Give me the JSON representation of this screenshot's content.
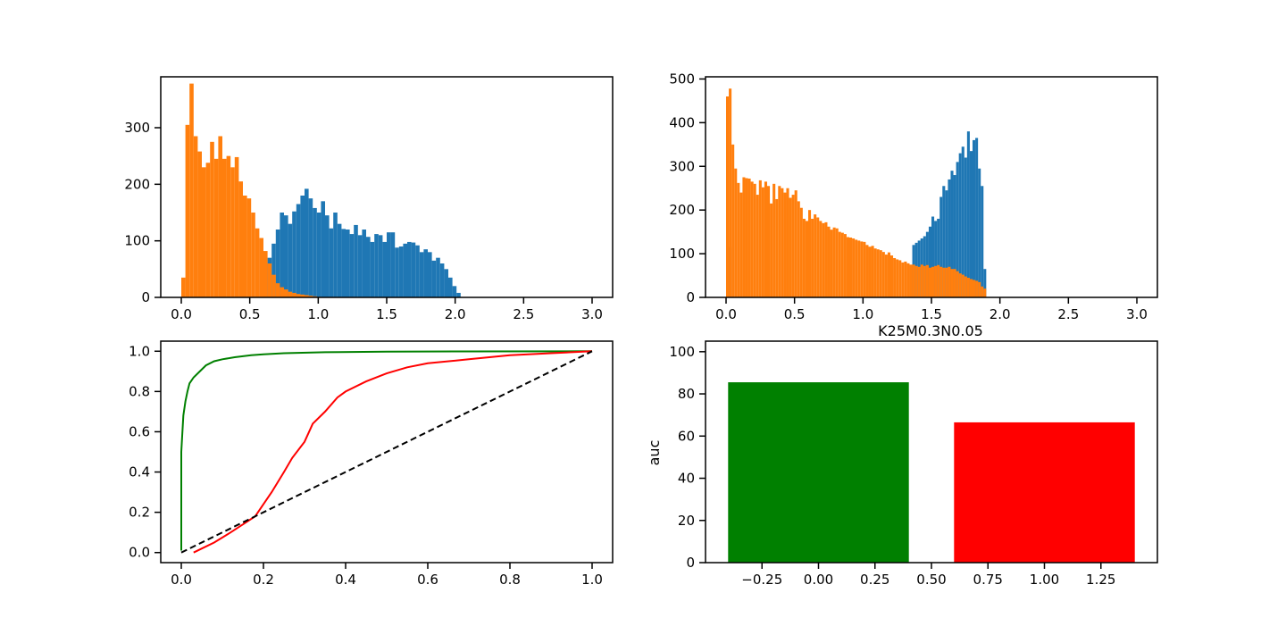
{
  "figure": {
    "background": "#ffffff",
    "colors": {
      "blue": "#1f77b4",
      "orange": "#ff7f0e",
      "green": "#008000",
      "red": "#ff0000",
      "diag": "#000000"
    }
  },
  "chart_data": [
    {
      "id": "hist-left",
      "type": "bar",
      "title": "",
      "xlabel": "",
      "ylabel": "",
      "xlim": [
        -0.15,
        3.15
      ],
      "ylim": [
        0,
        390
      ],
      "xticks": [
        0.0,
        0.5,
        1.0,
        1.5,
        2.0,
        2.5,
        3.0
      ],
      "xticklabels": [
        "0.0",
        "0.5",
        "1.0",
        "1.5",
        "2.0",
        "2.5",
        "3.0"
      ],
      "yticks": [
        0,
        100,
        200,
        300
      ],
      "yticklabels": [
        "0",
        "100",
        "200",
        "300"
      ],
      "bin_edges": {
        "start": 0.0,
        "width": 0.03
      },
      "series": [
        {
          "color": "#1f77b4",
          "values": [
            0,
            0,
            0,
            0,
            0,
            0,
            0,
            0,
            0,
            0,
            0,
            0,
            0,
            0,
            0,
            0,
            0,
            0,
            0,
            0,
            40,
            70,
            95,
            120,
            150,
            145,
            130,
            152,
            165,
            180,
            192,
            175,
            158,
            150,
            170,
            145,
            122,
            150,
            130,
            121,
            120,
            112,
            128,
            110,
            120,
            107,
            98,
            112,
            110,
            98,
            115,
            115,
            88,
            90,
            95,
            98,
            97,
            92,
            80,
            85,
            80,
            65,
            70,
            60,
            50,
            35,
            20,
            8,
            0,
            0,
            0,
            0,
            0,
            0,
            0,
            0,
            0,
            0,
            0,
            0,
            0,
            0,
            0,
            0,
            0,
            0,
            0,
            0,
            0,
            0,
            0,
            0,
            0,
            0,
            0,
            0,
            0,
            0,
            0,
            0
          ]
        },
        {
          "color": "#ff7f0e",
          "values": [
            35,
            305,
            378,
            285,
            258,
            230,
            238,
            275,
            245,
            285,
            245,
            250,
            230,
            248,
            205,
            180,
            175,
            150,
            122,
            105,
            82,
            60,
            40,
            25,
            18,
            14,
            10,
            8,
            6,
            5,
            4,
            3,
            2,
            1,
            0,
            0,
            0,
            0,
            0,
            0,
            0,
            0,
            0,
            0,
            0,
            0,
            0,
            0,
            0,
            0,
            0,
            0,
            0,
            0,
            0,
            0,
            0,
            0,
            0,
            0,
            0,
            0,
            0,
            0,
            0,
            0,
            0,
            0,
            0,
            0,
            0,
            0,
            0,
            0,
            0,
            0,
            0,
            0,
            0,
            0,
            0,
            0,
            0,
            0,
            0,
            0,
            0,
            0,
            0,
            0,
            0,
            0,
            0,
            0,
            0,
            0,
            0,
            0,
            0,
            0
          ]
        }
      ]
    },
    {
      "id": "hist-right",
      "type": "bar",
      "title": "",
      "xlabel": "",
      "ylabel": "",
      "xlim": [
        -0.15,
        3.15
      ],
      "ylim": [
        0,
        505
      ],
      "xticks": [
        0.0,
        0.5,
        1.0,
        1.5,
        2.0,
        2.5,
        3.0
      ],
      "xticklabels": [
        "0.0",
        "0.5",
        "1.0",
        "1.5",
        "2.0",
        "2.5",
        "3.0"
      ],
      "yticks": [
        0,
        100,
        200,
        300,
        400,
        500
      ],
      "yticklabels": [
        "0",
        "100",
        "200",
        "300",
        "400",
        "500"
      ],
      "bin_edges": {
        "start": 0.0,
        "width": 0.02
      },
      "series": [
        {
          "color": "#1f77b4",
          "values": [
            460,
            115,
            0,
            0,
            0,
            0,
            0,
            0,
            0,
            0,
            0,
            0,
            0,
            0,
            0,
            0,
            0,
            0,
            0,
            0,
            0,
            0,
            0,
            0,
            0,
            0,
            0,
            0,
            0,
            0,
            0,
            0,
            0,
            0,
            0,
            0,
            0,
            0,
            0,
            0,
            0,
            0,
            0,
            0,
            0,
            0,
            0,
            0,
            0,
            0,
            0,
            0,
            0,
            0,
            0,
            0,
            0,
            0,
            0,
            0,
            0,
            0,
            0,
            0,
            0,
            0,
            0,
            0,
            0,
            0,
            0,
            0,
            0,
            0,
            0,
            0,
            0,
            0,
            0,
            0,
            0,
            0,
            0,
            0,
            0,
            0,
            0,
            0,
            0,
            0,
            0,
            0,
            0,
            0,
            0,
            0,
            0,
            0,
            0,
            0,
            0,
            0,
            0,
            0,
            0,
            0,
            0,
            0,
            0,
            0,
            0,
            0,
            0,
            0,
            0,
            0,
            0,
            0,
            0,
            0,
            0,
            0,
            0,
            0,
            0,
            0,
            0,
            0,
            0,
            0,
            0,
            0,
            0,
            0,
            0,
            0,
            0,
            0,
            0,
            0,
            0,
            0,
            0,
            0,
            0,
            0,
            0,
            0,
            0,
            0,
            0,
            0,
            0,
            0,
            0,
            0,
            0,
            0,
            0,
            0,
            0,
            0,
            0,
            0,
            0,
            0,
            0,
            0,
            0,
            0,
            0,
            0,
            0,
            0,
            0,
            0,
            0,
            0,
            0,
            0,
            0,
            0,
            0,
            0,
            0,
            0,
            0,
            0,
            0,
            0,
            0,
            0,
            0,
            0,
            0,
            0,
            0,
            0,
            0,
            0,
            0,
            0,
            0,
            0,
            0,
            0,
            0,
            0,
            0,
            0,
            0,
            0,
            0,
            0,
            0,
            0,
            0,
            0,
            0,
            0,
            0,
            0,
            0,
            0,
            0,
            0,
            0,
            0,
            0,
            0,
            0,
            0,
            0,
            0,
            0,
            0,
            0,
            0,
            0,
            0,
            0,
            0,
            0,
            0,
            0,
            0,
            0,
            0,
            0,
            0,
            0,
            0,
            0,
            0,
            0,
            0,
            0,
            0,
            0,
            0,
            0,
            0,
            0,
            0,
            0,
            0,
            0,
            0,
            0,
            0,
            0,
            0,
            0,
            0,
            0,
            0,
            0,
            0,
            0,
            0,
            0,
            0,
            0,
            0,
            0,
            0,
            0,
            0,
            0,
            0,
            0,
            0,
            0,
            0,
            0,
            0,
            0,
            0,
            0,
            0,
            0,
            0,
            0,
            0,
            0,
            0,
            0,
            0,
            0,
            0,
            0,
            0,
            0,
            0,
            0,
            0,
            0,
            0,
            0,
            0
          ],
          "overlay_values": [
            0,
            0,
            0,
            0,
            0,
            0,
            0,
            0,
            0,
            0,
            0,
            0,
            0,
            0,
            0,
            0,
            0,
            0,
            0,
            0,
            0,
            0,
            0,
            0,
            0,
            0,
            0,
            0,
            0,
            0,
            0,
            0,
            0,
            0,
            0,
            0,
            0,
            0,
            0,
            0,
            0,
            0,
            0,
            0,
            0,
            0,
            0,
            0,
            0,
            0,
            0,
            0,
            0,
            0,
            0,
            0,
            0,
            0,
            0,
            0,
            0,
            0,
            0,
            0,
            0,
            0,
            0,
            0,
            120,
            125,
            130,
            135,
            140,
            150,
            162,
            185,
            175,
            180,
            230,
            255,
            245,
            270,
            290,
            280,
            310,
            330,
            345,
            320,
            380,
            335,
            360,
            365,
            295,
            255,
            65,
            0,
            0,
            0,
            0,
            0
          ]
        },
        {
          "color": "#ff7f0e",
          "values": [
            460,
            478,
            350,
            295,
            262,
            240,
            275,
            273,
            272,
            265,
            260,
            235,
            268,
            252,
            265,
            255,
            215,
            260,
            225,
            255,
            250,
            240,
            250,
            228,
            235,
            245,
            220,
            205,
            180,
            175,
            200,
            180,
            190,
            183,
            175,
            170,
            172,
            162,
            155,
            160,
            158,
            150,
            148,
            145,
            138,
            137,
            135,
            132,
            130,
            128,
            127,
            120,
            116,
            118,
            112,
            110,
            108,
            104,
            98,
            103,
            96,
            90,
            87,
            85,
            80,
            82,
            78,
            75,
            75,
            72,
            70,
            75,
            72,
            74,
            68,
            70,
            72,
            74,
            70,
            68,
            68,
            70,
            65,
            65,
            60,
            55,
            52,
            48,
            45,
            42,
            40,
            38,
            35,
            25,
            20,
            0,
            0,
            0,
            0,
            0
          ]
        }
      ]
    },
    {
      "id": "roc",
      "type": "line",
      "title": "",
      "xlabel": "",
      "ylabel": "",
      "xlim": [
        -0.05,
        1.05
      ],
      "ylim": [
        -0.05,
        1.05
      ],
      "xticks": [
        0.0,
        0.2,
        0.4,
        0.6,
        0.8,
        1.0
      ],
      "xticklabels": [
        "0.0",
        "0.2",
        "0.4",
        "0.6",
        "0.8",
        "1.0"
      ],
      "yticks": [
        0.0,
        0.2,
        0.4,
        0.6,
        0.8,
        1.0
      ],
      "yticklabels": [
        "0.0",
        "0.2",
        "0.4",
        "0.6",
        "0.8",
        "1.0"
      ],
      "series": [
        {
          "color": "#008000",
          "dash": false,
          "x": [
            0.0,
            0.0,
            0.005,
            0.01,
            0.015,
            0.02,
            0.03,
            0.04,
            0.05,
            0.06,
            0.08,
            0.1,
            0.13,
            0.17,
            0.2,
            0.25,
            0.35,
            0.5,
            0.7,
            1.0
          ],
          "y": [
            0.01,
            0.5,
            0.68,
            0.75,
            0.8,
            0.84,
            0.87,
            0.89,
            0.91,
            0.93,
            0.95,
            0.96,
            0.97,
            0.98,
            0.985,
            0.99,
            0.995,
            0.998,
            0.999,
            1.0
          ]
        },
        {
          "color": "#ff0000",
          "dash": false,
          "x": [
            0.03,
            0.05,
            0.08,
            0.12,
            0.15,
            0.18,
            0.2,
            0.22,
            0.25,
            0.27,
            0.3,
            0.32,
            0.35,
            0.38,
            0.4,
            0.45,
            0.5,
            0.55,
            0.6,
            0.7,
            0.8,
            0.9,
            1.0
          ],
          "y": [
            0.0,
            0.02,
            0.05,
            0.1,
            0.14,
            0.18,
            0.24,
            0.3,
            0.4,
            0.47,
            0.55,
            0.64,
            0.7,
            0.77,
            0.8,
            0.85,
            0.89,
            0.92,
            0.94,
            0.96,
            0.98,
            0.99,
            1.0
          ]
        },
        {
          "color": "#000000",
          "dash": true,
          "x": [
            0.0,
            1.0
          ],
          "y": [
            0.0,
            1.0
          ]
        }
      ]
    },
    {
      "id": "auc-bar",
      "type": "bar",
      "title": "K25M0.3N0.05",
      "xlabel": "",
      "ylabel": "auc",
      "xlim": [
        -0.5,
        1.5
      ],
      "ylim": [
        0,
        105
      ],
      "xticks": [
        -0.25,
        0.0,
        0.25,
        0.5,
        0.75,
        1.0,
        1.25
      ],
      "xticklabels": [
        "−0.25",
        "0.00",
        "0.25",
        "0.50",
        "0.75",
        "1.00",
        "1.25"
      ],
      "yticks": [
        0,
        20,
        40,
        60,
        80,
        100
      ],
      "yticklabels": [
        "0",
        "20",
        "40",
        "60",
        "80",
        "100"
      ],
      "bars": [
        {
          "x": 0,
          "width": 0.8,
          "value": 85.5,
          "color": "#008000"
        },
        {
          "x": 1,
          "width": 0.8,
          "value": 66.5,
          "color": "#ff0000"
        }
      ]
    }
  ]
}
